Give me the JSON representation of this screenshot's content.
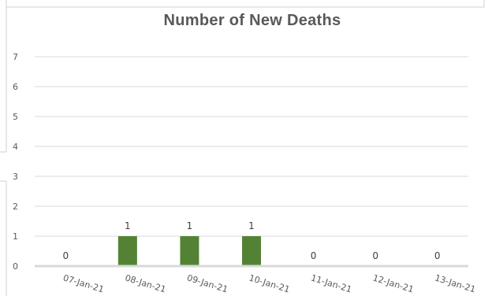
{
  "chart_data": {
    "type": "bar",
    "title": "Number of New Deaths",
    "xlabel": "",
    "ylabel": "",
    "categories": [
      "07-Jan-21",
      "08-Jan-21",
      "09-Jan-21",
      "10-Jan-21",
      "11-Jan-21",
      "12-Jan-21",
      "13-Jan-21"
    ],
    "values": [
      0,
      1,
      1,
      1,
      0,
      0,
      0
    ],
    "data_labels": [
      "0",
      "1",
      "1",
      "1",
      "0",
      "0",
      "0"
    ],
    "ylim": [
      0,
      7
    ],
    "yticks": [
      "0",
      "1",
      "2",
      "3",
      "4",
      "5",
      "6",
      "7"
    ],
    "grid": true,
    "legend": "none",
    "bar_color": "#548235",
    "grid_color": "#d9d9d9",
    "label_color": "#595959"
  }
}
